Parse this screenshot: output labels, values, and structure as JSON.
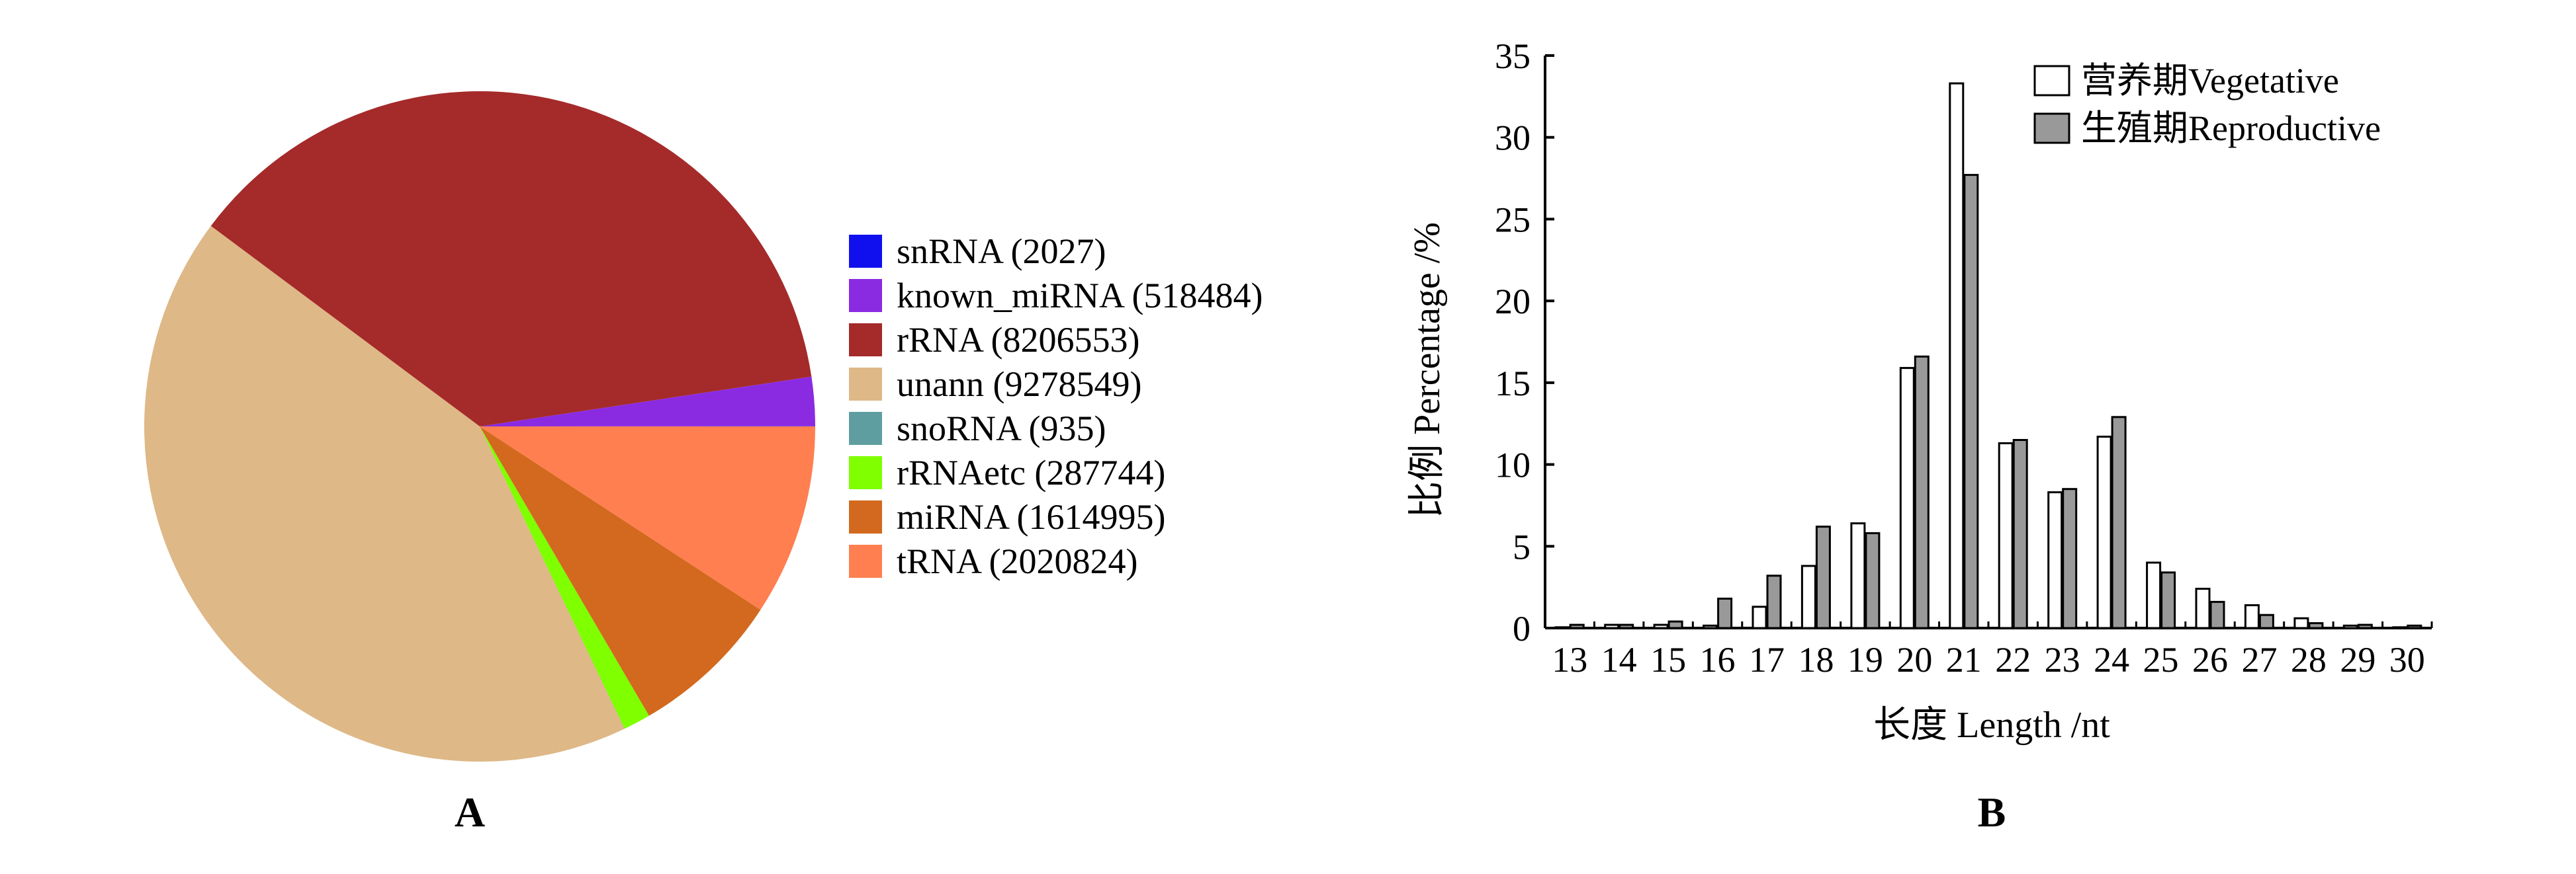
{
  "chart_data": [
    {
      "type": "pie",
      "label": "A",
      "slices": [
        {
          "name": "snRNA",
          "display": "snRNA (2027)",
          "value": 2027,
          "color": "#1010ee"
        },
        {
          "name": "known_miRNA",
          "display": "known_miRNA (518484)",
          "value": 518484,
          "color": "#8a2be2"
        },
        {
          "name": "rRNA",
          "display": "rRNA (8206553)",
          "value": 8206553,
          "color": "#a52a2a"
        },
        {
          "name": "unann",
          "display": "unann (9278549)",
          "value": 9278549,
          "color": "#deb887"
        },
        {
          "name": "snoRNA",
          "display": "snoRNA (935)",
          "value": 935,
          "color": "#5f9ea0"
        },
        {
          "name": "rRNAetc",
          "display": "rRNAetc (287744)",
          "value": 287744,
          "color": "#7fff00"
        },
        {
          "name": "miRNA",
          "display": "miRNA (1614995)",
          "value": 1614995,
          "color": "#d2691e"
        },
        {
          "name": "tRNA",
          "display": "tRNA (2020824)",
          "value": 2020824,
          "color": "#ff7f50"
        }
      ]
    },
    {
      "type": "bar",
      "label": "B",
      "xlabel": "长度 Length /nt",
      "ylabel": "比例 Percentage /%",
      "ylim": [
        0,
        35
      ],
      "yticks": [
        0,
        5,
        10,
        15,
        20,
        25,
        30,
        35
      ],
      "categories": [
        "13",
        "14",
        "15",
        "16",
        "17",
        "18",
        "19",
        "20",
        "21",
        "22",
        "23",
        "24",
        "25",
        "26",
        "27",
        "28",
        "29",
        "30"
      ],
      "series": [
        {
          "name": "营养期Vegetative",
          "color": "#ffffff",
          "values": [
            0.05,
            0.2,
            0.2,
            0.15,
            1.3,
            3.8,
            6.4,
            15.9,
            33.3,
            11.3,
            8.3,
            11.7,
            4.0,
            2.4,
            1.4,
            0.6,
            0.15,
            0.05
          ]
        },
        {
          "name": "生殖期Reproductive",
          "color": "#999999",
          "values": [
            0.2,
            0.2,
            0.4,
            1.8,
            3.2,
            6.2,
            5.8,
            16.6,
            27.7,
            11.5,
            8.5,
            12.9,
            3.4,
            1.6,
            0.8,
            0.3,
            0.2,
            0.15
          ]
        }
      ]
    }
  ]
}
